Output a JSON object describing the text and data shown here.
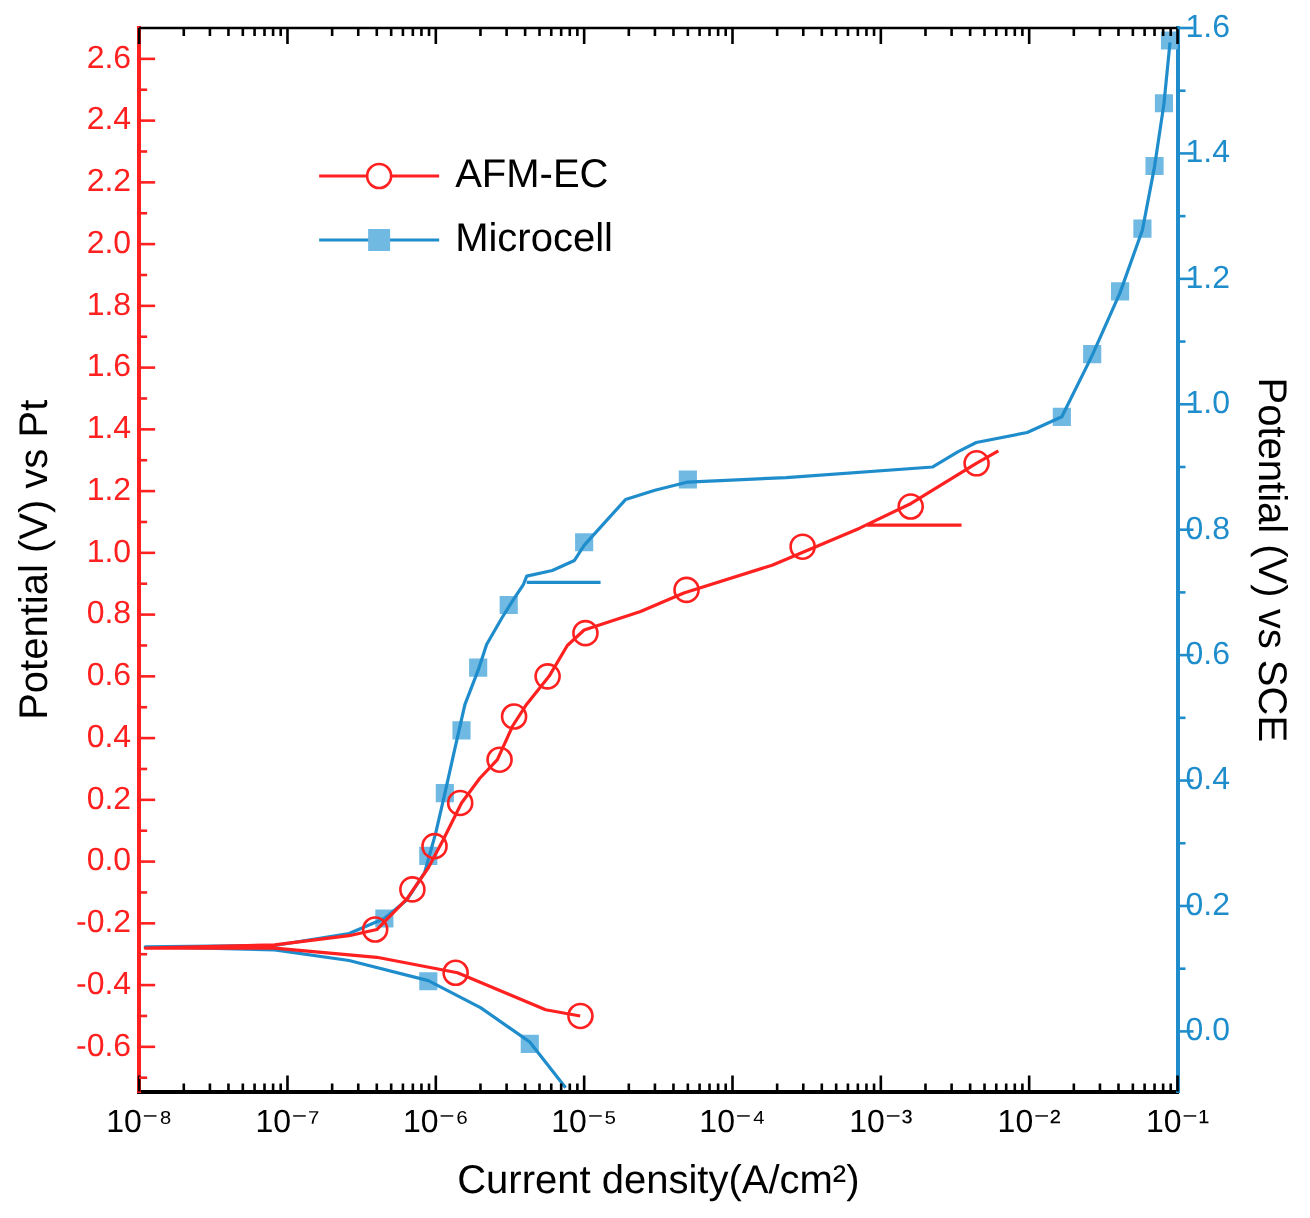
{
  "chart_data": {
    "type": "line",
    "xlabel": "Current density(A/cm²)",
    "ylabel": "Potential (V) vs Pt",
    "y2label": "Potential (V) vs SCE",
    "log": "x",
    "legend": "top left",
    "xlim": [
      1e-08,
      0.1
    ],
    "xticks": [
      {
        "value": 1e-08,
        "label": "10⁻⁸"
      },
      {
        "value": 2e-08,
        "label": null
      },
      {
        "value": 3e-08,
        "label": null
      },
      {
        "value": 4e-08,
        "label": null
      },
      {
        "value": 5e-08,
        "label": null
      },
      {
        "value": 6e-08,
        "label": null
      },
      {
        "value": 7e-08,
        "label": null
      },
      {
        "value": 8e-08,
        "label": null
      },
      {
        "value": 9e-08,
        "label": null
      },
      {
        "value": 1e-07,
        "label": "10⁻⁷"
      },
      {
        "value": 2e-07,
        "label": null
      },
      {
        "value": 3e-07,
        "label": null
      },
      {
        "value": 4e-07,
        "label": null
      },
      {
        "value": 5e-07,
        "label": null
      },
      {
        "value": 6e-07,
        "label": null
      },
      {
        "value": 7e-07,
        "label": null
      },
      {
        "value": 8e-07,
        "label": null
      },
      {
        "value": 9e-07,
        "label": null
      },
      {
        "value": 1e-06,
        "label": "10⁻⁶"
      },
      {
        "value": 2e-06,
        "label": null
      },
      {
        "value": 3e-06,
        "label": null
      },
      {
        "value": 4e-06,
        "label": null
      },
      {
        "value": 5e-06,
        "label": null
      },
      {
        "value": 6e-06,
        "label": null
      },
      {
        "value": 7e-06,
        "label": null
      },
      {
        "value": 8e-06,
        "label": null
      },
      {
        "value": 9e-06,
        "label": null
      },
      {
        "value": 1e-05,
        "label": "10⁻⁵"
      },
      {
        "value": 2e-05,
        "label": null
      },
      {
        "value": 3e-05,
        "label": null
      },
      {
        "value": 4e-05,
        "label": null
      },
      {
        "value": 5e-05,
        "label": null
      },
      {
        "value": 6e-05,
        "label": null
      },
      {
        "value": 7e-05,
        "label": null
      },
      {
        "value": 8e-05,
        "label": null
      },
      {
        "value": 9e-05,
        "label": null
      },
      {
        "value": 0.0001,
        "label": "10⁻⁴"
      },
      {
        "value": 0.0002,
        "label": null
      },
      {
        "value": 0.0003,
        "label": null
      },
      {
        "value": 0.0004,
        "label": null
      },
      {
        "value": 0.0005,
        "label": null
      },
      {
        "value": 0.0006,
        "label": null
      },
      {
        "value": 0.0007,
        "label": null
      },
      {
        "value": 0.0008,
        "label": null
      },
      {
        "value": 0.0009,
        "label": null
      },
      {
        "value": 0.001,
        "label": "10⁻³"
      },
      {
        "value": 0.002,
        "label": null
      },
      {
        "value": 0.003,
        "label": null
      },
      {
        "value": 0.004,
        "label": null
      },
      {
        "value": 0.005,
        "label": null
      },
      {
        "value": 0.006,
        "label": null
      },
      {
        "value": 0.007,
        "label": null
      },
      {
        "value": 0.008,
        "label": null
      },
      {
        "value": 0.009,
        "label": null
      },
      {
        "value": 0.01,
        "label": "10⁻²"
      },
      {
        "value": 0.02,
        "label": null
      },
      {
        "value": 0.03,
        "label": null
      },
      {
        "value": 0.04,
        "label": null
      },
      {
        "value": 0.05,
        "label": null
      },
      {
        "value": 0.06,
        "label": null
      },
      {
        "value": 0.07,
        "label": null
      },
      {
        "value": 0.08,
        "label": null
      },
      {
        "value": 0.09,
        "label": null
      },
      {
        "value": 0.1,
        "label": "10⁻¹"
      }
    ],
    "ylim": [
      -0.745,
      2.7
    ],
    "yticks": [
      {
        "value": -0.7,
        "label": null
      },
      {
        "value": -0.6,
        "label": "-0.6"
      },
      {
        "value": -0.5,
        "label": null
      },
      {
        "value": -0.4,
        "label": "-0.4"
      },
      {
        "value": -0.3,
        "label": null
      },
      {
        "value": -0.2,
        "label": "-0.2"
      },
      {
        "value": -0.1,
        "label": null
      },
      {
        "value": 0,
        "label": "0.0"
      },
      {
        "value": 0.1,
        "label": null
      },
      {
        "value": 0.2,
        "label": "0.2"
      },
      {
        "value": 0.3,
        "label": null
      },
      {
        "value": 0.4,
        "label": "0.4"
      },
      {
        "value": 0.5,
        "label": null
      },
      {
        "value": 0.6,
        "label": "0.6"
      },
      {
        "value": 0.7,
        "label": null
      },
      {
        "value": 0.8,
        "label": "0.8"
      },
      {
        "value": 0.9,
        "label": null
      },
      {
        "value": 1,
        "label": "1.0"
      },
      {
        "value": 1.1,
        "label": null
      },
      {
        "value": 1.2,
        "label": "1.2"
      },
      {
        "value": 1.3,
        "label": null
      },
      {
        "value": 1.4,
        "label": "1.4"
      },
      {
        "value": 1.5,
        "label": null
      },
      {
        "value": 1.6,
        "label": "1.6"
      },
      {
        "value": 1.7,
        "label": null
      },
      {
        "value": 1.8,
        "label": "1.8"
      },
      {
        "value": 1.9,
        "label": null
      },
      {
        "value": 2,
        "label": "2.0"
      },
      {
        "value": 2.1,
        "label": null
      },
      {
        "value": 2.2,
        "label": "2.2"
      },
      {
        "value": 2.3,
        "label": null
      },
      {
        "value": 2.4,
        "label": "2.4"
      },
      {
        "value": 2.5,
        "label": null
      },
      {
        "value": 2.6,
        "label": "2.6"
      }
    ],
    "y2lim": [
      -0.096,
      1.6
    ],
    "y2ticks": [
      {
        "value": 0,
        "label": "0.0"
      },
      {
        "value": 0.1,
        "label": null
      },
      {
        "value": 0.2,
        "label": "0.2"
      },
      {
        "value": 0.3,
        "label": null
      },
      {
        "value": 0.4,
        "label": "0.4"
      },
      {
        "value": 0.5,
        "label": null
      },
      {
        "value": 0.6,
        "label": "0.6"
      },
      {
        "value": 0.7,
        "label": null
      },
      {
        "value": 0.8,
        "label": "0.8"
      },
      {
        "value": 0.9,
        "label": null
      },
      {
        "value": 1,
        "label": "1.0"
      },
      {
        "value": 1.1,
        "label": null
      },
      {
        "value": 1.2,
        "label": "1.2"
      },
      {
        "value": 1.3,
        "label": null
      },
      {
        "value": 1.4,
        "label": "1.4"
      },
      {
        "value": 1.5,
        "label": null
      },
      {
        "value": 1.6,
        "label": "1.6"
      }
    ],
    "series": [
      {
        "name": "AFM-EC",
        "type": "line",
        "color": "#ff2020",
        "axis": "y",
        "x": [
          9.4e-06,
          5.5e-06,
          3.1e-06,
          1.4e-06,
          4e-07,
          8.2e-08,
          1.1e-08,
          8.2e-08,
          2.6e-07,
          4e-07,
          6.4e-07,
          8.9e-07,
          1.12e-06,
          1.49e-06,
          1.98e-06,
          2.6e-06,
          3.3e-06,
          4.1e-06,
          5.8e-06,
          7.7e-06,
          1e-05,
          2.4e-05,
          4.7e-05,
          0.000185,
          0.00072,
          0.0016,
          0.0044,
          0.0062,
          null,
          0.0035,
          0.00081
        ],
        "values": [
          -0.5,
          -0.48,
          -0.43,
          -0.36,
          -0.31,
          -0.28,
          -0.28,
          -0.27,
          -0.24,
          -0.22,
          -0.12,
          -0.02,
          0.07,
          0.19,
          0.27,
          0.33,
          0.44,
          0.51,
          0.6,
          0.7,
          0.75,
          0.81,
          0.87,
          0.96,
          1.08,
          1.16,
          1.29,
          1.33,
          null,
          1.09,
          1.09
        ]
      },
      {
        "type": "scatter",
        "color": "#ff2020",
        "marker": "circle",
        "axis": "y",
        "x": [
          3.9e-07,
          6.95e-07,
          9.8e-07,
          1.46e-06,
          2.69e-06,
          3.37e-06,
          5.67e-06,
          1.02e-05,
          4.9e-05,
          0.000297,
          0.00159,
          0.00442,
          1.36e-06,
          9.44e-06
        ],
        "values": [
          -0.22,
          -0.09,
          0.05,
          0.19,
          0.33,
          0.47,
          0.6,
          0.74,
          0.88,
          1.02,
          1.15,
          1.29,
          -0.36,
          -0.5
        ]
      },
      {
        "name": "Microcell",
        "type": "line",
        "color": "#1f8dcc",
        "axis": "y2",
        "x": [
          7.5e-06,
          4.3e-06,
          2e-06,
          8.9e-07,
          2.6e-07,
          8.2e-08,
          1.1e-08,
          8.2e-08,
          2.6e-07,
          4.5e-07,
          6.4e-07,
          8.4e-07,
          1e-06,
          1.15e-06,
          1.33e-06,
          1.57e-06,
          1.93e-06,
          2.2e-06,
          2.8e-06,
          3.3e-06,
          3.9e-06,
          4.1e-06,
          6.1e-06,
          8.6e-06,
          1e-05,
          1.36e-05,
          1.9e-05,
          3e-05,
          5e-05,
          0.00023,
          0.00224,
          0.0033,
          0.0044,
          0.0097,
          0.0166,
          0.0266,
          0.041,
          0.058,
          0.07,
          0.081,
          0.089,
          null,
          1.29e-05,
          4.1e-06
        ],
        "values": [
          -0.09,
          -0.017,
          0.038,
          0.081,
          0.113,
          0.13,
          0.135,
          0.137,
          0.156,
          0.18,
          0.21,
          0.253,
          0.317,
          0.379,
          0.446,
          0.521,
          0.576,
          0.617,
          0.66,
          0.687,
          0.713,
          0.726,
          0.735,
          0.751,
          0.775,
          0.81,
          0.848,
          0.863,
          0.876,
          0.883,
          0.9,
          0.924,
          0.939,
          0.955,
          0.98,
          1.078,
          1.178,
          1.278,
          1.379,
          1.479,
          1.577,
          null,
          0.716,
          0.716
        ]
      },
      {
        "type": "scatter",
        "color": "#6fb9e3",
        "marker": "square",
        "axis": "y2",
        "x": [
          4.5e-07,
          8.9e-07,
          1.15e-06,
          1.49e-06,
          1.93e-06,
          3.1e-06,
          1e-05,
          5e-05,
          8.9e-07,
          4.3e-06,
          0.0166,
          0.0266,
          0.041,
          0.058,
          0.07,
          0.081,
          0.089
        ],
        "values": [
          0.18,
          0.28,
          0.38,
          0.48,
          0.58,
          0.68,
          0.78,
          0.88,
          0.08,
          -0.02,
          0.98,
          1.08,
          1.18,
          1.28,
          1.38,
          1.48,
          1.58
        ]
      }
    ]
  }
}
